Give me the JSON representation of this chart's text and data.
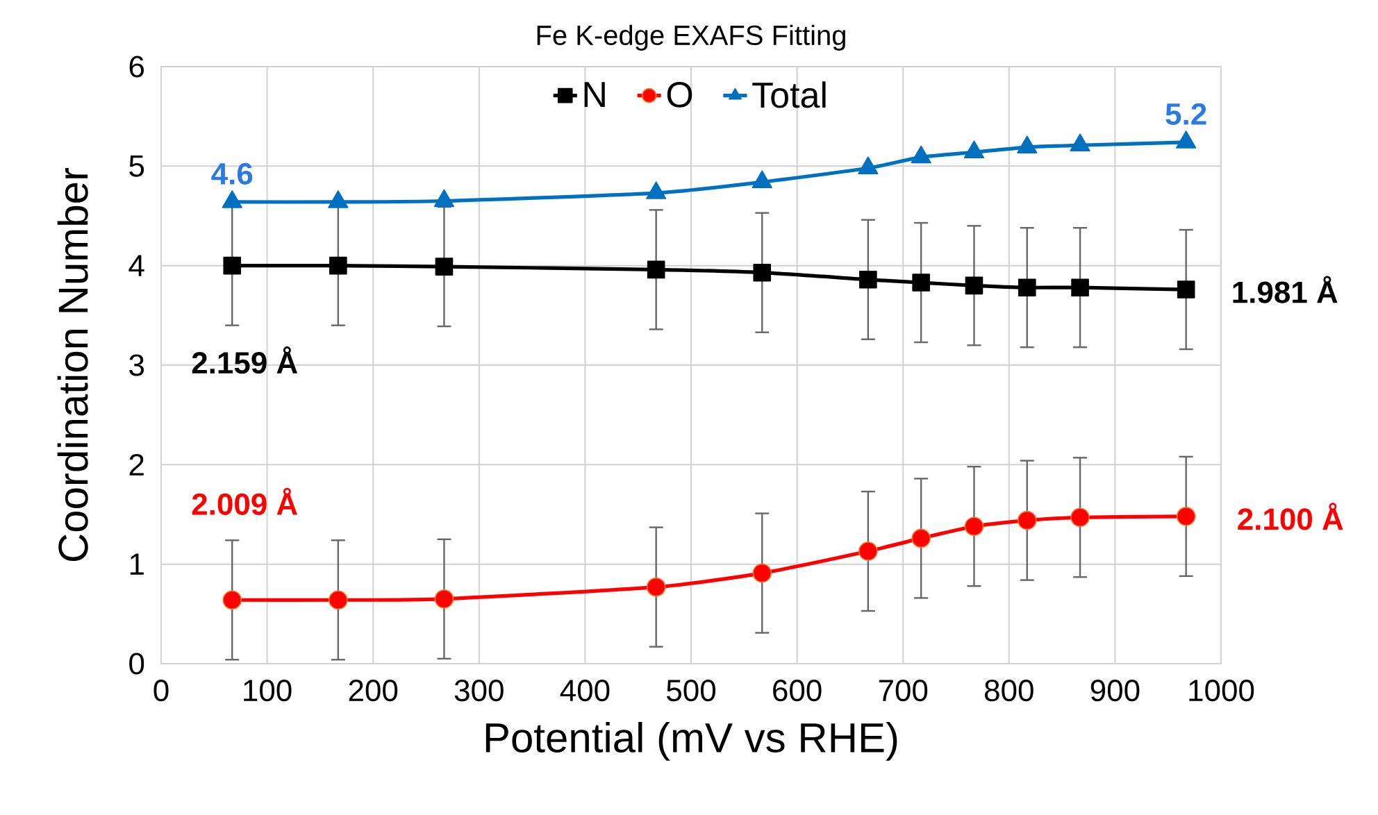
{
  "chart_data": {
    "type": "line",
    "title": "Fe K-edge EXAFS Fitting",
    "xlabel": "Potential (mV vs RHE)",
    "ylabel": "Coordination Number",
    "x": [
      67,
      167,
      267,
      467,
      567,
      667,
      717,
      767,
      817,
      867,
      967
    ],
    "series": [
      {
        "name": "N",
        "color": "#000000",
        "marker": "square",
        "values": [
          4.0,
          4.0,
          3.99,
          3.96,
          3.93,
          3.86,
          3.83,
          3.8,
          3.78,
          3.78,
          3.76
        ],
        "errors": [
          0.6,
          0.6,
          0.6,
          0.6,
          0.6,
          0.6,
          0.6,
          0.6,
          0.6,
          0.6,
          0.6
        ]
      },
      {
        "name": "O",
        "color": "#ff0000",
        "marker": "circle",
        "values": [
          0.64,
          0.64,
          0.65,
          0.77,
          0.91,
          1.13,
          1.26,
          1.38,
          1.44,
          1.47,
          1.48
        ],
        "errors": [
          0.6,
          0.6,
          0.6,
          0.6,
          0.6,
          0.6,
          0.6,
          0.6,
          0.6,
          0.6,
          0.6
        ]
      },
      {
        "name": "Total",
        "color": "#0070c0",
        "marker": "triangle",
        "values": [
          4.64,
          4.64,
          4.65,
          4.73,
          4.84,
          4.98,
          5.09,
          5.14,
          5.19,
          5.21,
          5.24
        ],
        "value_labels": [
          "4.6",
          null,
          null,
          null,
          null,
          null,
          null,
          null,
          null,
          null,
          "5.2"
        ]
      }
    ],
    "annotations": [
      "2.159 Å",
      "1.981 Å",
      "2.009 Å",
      "2.100 Å"
    ],
    "xlim": [
      0,
      1000
    ],
    "xticks": [
      0,
      100,
      200,
      300,
      400,
      500,
      600,
      700,
      800,
      900,
      1000
    ],
    "ylim": [
      0,
      6
    ],
    "yticks": [
      0,
      1,
      2,
      3,
      4,
      5,
      6
    ],
    "grid": true,
    "legend": "top",
    "line_style": "solid"
  }
}
